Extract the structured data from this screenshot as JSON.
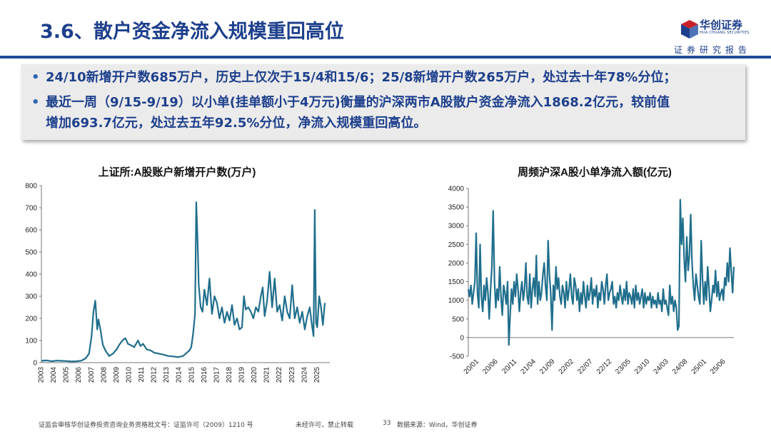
{
  "slide": {
    "title": "3.6、散户资金净流入规模重回高位",
    "logo_cn": "华创证券",
    "logo_en": "HUA CHUANG SECURITIES",
    "tagline": "证券研究报告",
    "bullets": [
      "24/10新增开户数685万户，历史上仅次于15/4和15/6；25/8新增开户数265万户，处过去十年78%分位；",
      "最近一周（9/15-9/19）以小单(挂单额小于4万元)衡量的沪深两市A股散户资金净流入1868.2亿元，较前值",
      "增加693.7亿元，处过去五年92.5%分位，净流入规模重回高位。"
    ],
    "footer": {
      "license": "证监会审核华创证券投资咨询业务资格批文号：证监许可（2009）1210 号",
      "notice": "未经许可，禁止转载",
      "page": "33",
      "source": "数据来源：Wind，华创证券"
    }
  },
  "chart_data": [
    {
      "type": "line",
      "title": "上证所:A股账户新增开户数(万户)",
      "ylim": [
        0,
        800
      ],
      "yticks": [
        0,
        100,
        200,
        300,
        400,
        500,
        600,
        700,
        800
      ],
      "xticks": [
        "2003",
        "2004",
        "2005",
        "2006",
        "2007",
        "2008",
        "2009",
        "2010",
        "2011",
        "2012",
        "2013",
        "2014",
        "2015",
        "2016",
        "2017",
        "2018",
        "2019",
        "2020",
        "2021",
        "2022",
        "2023",
        "2024",
        "2025"
      ],
      "x_start": 2003.0,
      "color": "#1f6e8c",
      "x": [
        2003.0,
        2003.4,
        2003.8,
        2004.2,
        2004.6,
        2005.0,
        2005.4,
        2005.8,
        2006.2,
        2006.5,
        2006.8,
        2007.0,
        2007.15,
        2007.3,
        2007.45,
        2007.55,
        2007.7,
        2007.9,
        2008.1,
        2008.4,
        2008.7,
        2009.0,
        2009.2,
        2009.4,
        2009.55,
        2009.7,
        2009.9,
        2010.1,
        2010.4,
        2010.7,
        2010.9,
        2011.1,
        2011.4,
        2011.7,
        2012.0,
        2012.4,
        2012.8,
        2013.1,
        2013.5,
        2013.9,
        2014.3,
        2014.6,
        2014.8,
        2014.95,
        2015.1,
        2015.25,
        2015.35,
        2015.45,
        2015.55,
        2015.7,
        2015.85,
        2016.0,
        2016.2,
        2016.4,
        2016.6,
        2016.8,
        2017.0,
        2017.2,
        2017.4,
        2017.6,
        2017.8,
        2018.0,
        2018.2,
        2018.4,
        2018.6,
        2018.8,
        2019.0,
        2019.15,
        2019.3,
        2019.5,
        2019.7,
        2019.9,
        2020.1,
        2020.3,
        2020.5,
        2020.65,
        2020.8,
        2021.0,
        2021.2,
        2021.4,
        2021.6,
        2021.8,
        2022.0,
        2022.2,
        2022.4,
        2022.6,
        2022.8,
        2023.0,
        2023.2,
        2023.4,
        2023.6,
        2023.8,
        2024.0,
        2024.2,
        2024.4,
        2024.55,
        2024.7,
        2024.8,
        2024.9,
        2025.0,
        2025.15,
        2025.3,
        2025.45,
        2025.6
      ],
      "values": [
        8,
        10,
        6,
        9,
        8,
        7,
        5,
        6,
        9,
        18,
        40,
        120,
        230,
        280,
        150,
        195,
        150,
        80,
        55,
        30,
        40,
        60,
        80,
        95,
        105,
        110,
        85,
        80,
        70,
        100,
        75,
        85,
        60,
        55,
        45,
        40,
        35,
        30,
        28,
        25,
        30,
        45,
        55,
        70,
        130,
        220,
        725,
        560,
        350,
        250,
        230,
        330,
        260,
        380,
        220,
        300,
        270,
        200,
        250,
        180,
        230,
        190,
        260,
        170,
        200,
        150,
        160,
        300,
        240,
        250,
        230,
        200,
        250,
        230,
        300,
        340,
        210,
        280,
        410,
        250,
        380,
        230,
        260,
        190,
        300,
        230,
        200,
        350,
        200,
        250,
        180,
        230,
        150,
        210,
        250,
        180,
        120,
        690,
        180,
        160,
        300,
        250,
        170,
        270
      ]
    },
    {
      "type": "line",
      "title": "周频沪深A股小单净流入额(亿元)",
      "ylim": [
        -500,
        4000
      ],
      "yticks": [
        -500,
        0,
        500,
        1000,
        1500,
        2000,
        2500,
        3000,
        3500,
        4000
      ],
      "xticks": [
        "20/01",
        "20/06",
        "20/11",
        "21/04",
        "21/09",
        "22/02",
        "22/07",
        "22/12",
        "23/05",
        "23/10",
        "24/03",
        "24/08",
        "25/01",
        "25/06"
      ],
      "color": "#1f6e8c",
      "values": [
        1300,
        1100,
        1400,
        900,
        1200,
        1500,
        2800,
        1200,
        800,
        2500,
        1100,
        700,
        1400,
        1000,
        1600,
        1200,
        500,
        1300,
        1900,
        3400,
        1500,
        800,
        1300,
        1000,
        1900,
        1100,
        600,
        1400,
        1200,
        900,
        1500,
        -200,
        600,
        1300,
        900,
        1500,
        1100,
        1700,
        1300,
        700,
        1200,
        1500,
        1000,
        1300,
        2000,
        1100,
        900,
        1700,
        800,
        1300,
        1600,
        1100,
        2200,
        900,
        1500,
        1000,
        1200,
        1700,
        2000,
        1400,
        1000,
        2600,
        1700,
        1200,
        200,
        1400,
        1000,
        1900,
        1300,
        1600,
        1100,
        900,
        1400,
        1200,
        800,
        1500,
        1000,
        1300,
        1700,
        1100,
        900,
        1600,
        1400,
        1000,
        1300,
        700,
        1200,
        900,
        1500,
        1100,
        800,
        1400,
        1000,
        1200,
        1600,
        900,
        1300,
        1100,
        1400,
        800,
        1200,
        1000,
        1500,
        1300,
        900,
        1400,
        1700,
        1000,
        1200,
        1300,
        1500,
        900,
        1100,
        800,
        1200,
        1000,
        1400,
        1100,
        900,
        1300,
        1000,
        1500,
        900,
        1200,
        1100,
        900,
        1300,
        800,
        1400,
        1000,
        1200,
        900,
        1100,
        1300,
        800,
        1200,
        900,
        1100,
        1000,
        1200,
        800,
        1100,
        900,
        1000,
        800,
        1200,
        900,
        1000,
        700,
        1300,
        900,
        1000,
        800,
        600,
        1400,
        900,
        1100,
        700,
        1000,
        800,
        200,
        300,
        3700,
        2500,
        3200,
        2100,
        1500,
        2700,
        1800,
        2200,
        3300,
        2000,
        1400,
        1000,
        1700,
        1400,
        1100,
        900,
        2600,
        1600,
        900,
        1500,
        1000,
        1900,
        1300,
        700,
        1000,
        1400,
        1200,
        1800,
        1100,
        1500,
        1000,
        1200,
        1300,
        1000,
        1600,
        1400,
        2000,
        1500,
        2400,
        1800,
        1200,
        1900
      ]
    }
  ]
}
